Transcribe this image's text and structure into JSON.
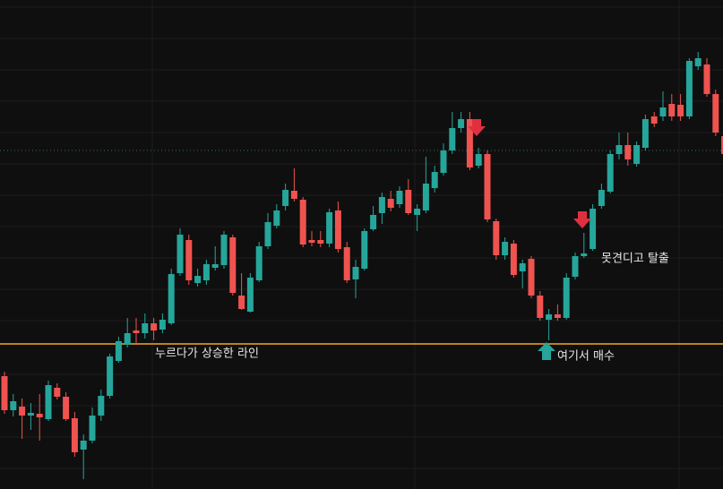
{
  "chart_data": {
    "type": "candlestick",
    "ylim": [
      0,
      546
    ],
    "up_color": "#26a69a",
    "down_color": "#ef5350",
    "open": [
      126,
      88,
      92,
      82,
      84,
      78,
      113,
      103,
      79,
      44,
      54,
      82,
      104,
      143,
      161,
      177,
      174,
      185,
      178,
      185,
      241,
      278,
      230,
      233,
      247,
      250,
      281,
      216,
      198,
      233,
      271,
      294,
      316,
      333,
      323,
      278,
      278,
      274,
      311,
      270,
      234,
      246,
      290,
      308,
      324,
      318,
      334,
      306,
      311,
      336,
      353,
      378,
      403,
      413,
      361,
      374,
      299,
      261,
      274,
      243,
      257,
      216,
      189,
      195,
      191,
      237,
      260,
      268,
      316,
      332,
      374,
      384,
      363,
      381,
      416,
      416,
      430,
      429,
      416,
      472,
      474,
      441,
      394
    ],
    "high": [
      131,
      106,
      101,
      96,
      106,
      121,
      118,
      108,
      86,
      61,
      91,
      111,
      151,
      170,
      191,
      191,
      196,
      191,
      196,
      246,
      291,
      284,
      246,
      256,
      271,
      288,
      284,
      241,
      241,
      276,
      308,
      318,
      341,
      358,
      326,
      288,
      288,
      313,
      321,
      276,
      256,
      291,
      316,
      331,
      333,
      338,
      346,
      318,
      371,
      361,
      386,
      421,
      421,
      421,
      381,
      378,
      302,
      281,
      278,
      256,
      260,
      221,
      201,
      206,
      241,
      264,
      286,
      318,
      341,
      378,
      398,
      398,
      388,
      418,
      421,
      444,
      441,
      441,
      481,
      488,
      481,
      446,
      401
    ],
    "low": [
      84,
      81,
      56,
      66,
      54,
      76,
      100,
      76,
      36,
      11,
      51,
      76,
      101,
      141,
      158,
      161,
      168,
      166,
      174,
      183,
      238,
      228,
      226,
      228,
      244,
      246,
      216,
      200,
      197,
      231,
      268,
      291,
      311,
      321,
      270,
      271,
      270,
      270,
      264,
      230,
      213,
      244,
      288,
      296,
      310,
      314,
      306,
      288,
      308,
      331,
      350,
      374,
      398,
      356,
      358,
      298,
      256,
      256,
      236,
      224,
      213,
      188,
      166,
      188,
      189,
      234,
      258,
      266,
      313,
      330,
      368,
      361,
      360,
      378,
      404,
      411,
      411,
      411,
      413,
      468,
      438,
      394,
      368
    ],
    "close": [
      88,
      98,
      82,
      85,
      80,
      116,
      103,
      78,
      41,
      54,
      82,
      104,
      148,
      165,
      174,
      174,
      185,
      177,
      189,
      240,
      284,
      233,
      238,
      251,
      251,
      284,
      219,
      201,
      236,
      271,
      298,
      311,
      334,
      324,
      273,
      275,
      274,
      309,
      268,
      233,
      248,
      288,
      306,
      326,
      314,
      333,
      308,
      313,
      341,
      354,
      378,
      403,
      413,
      359,
      374,
      301,
      261,
      276,
      239,
      252,
      216,
      191,
      195,
      191,
      236,
      260,
      263,
      313,
      334,
      374,
      384,
      368,
      384,
      413,
      408,
      426,
      416,
      416,
      478,
      481,
      441,
      398,
      374
    ],
    "lines": [
      {
        "value": 162,
        "color": "#f5a623",
        "style": "solid"
      },
      {
        "value": 378,
        "color": "#3d6b60",
        "style": "dotted"
      }
    ],
    "annotations": [
      "누르다가 상승한 라인",
      "여기서 매수",
      "못견디고 탈출"
    ]
  }
}
